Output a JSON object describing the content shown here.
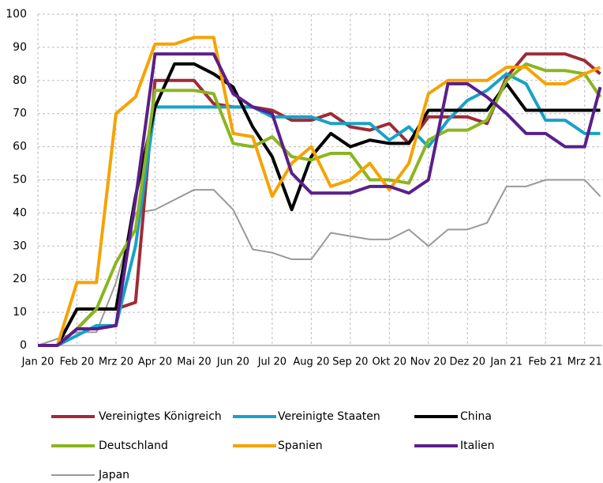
{
  "chart_data": {
    "type": "line",
    "x": [
      0,
      0.5,
      1,
      1.5,
      2,
      2.5,
      3,
      3.5,
      4,
      4.5,
      5,
      5.5,
      6,
      6.5,
      7,
      7.5,
      8,
      8.5,
      9,
      9.5,
      10,
      10.5,
      11,
      11.5,
      12,
      12.5,
      13,
      13.5,
      14,
      14.4
    ],
    "xlim": [
      0,
      14.45
    ],
    "xticks": [
      {
        "value": 0,
        "label": "Jan 20"
      },
      {
        "value": 1,
        "label": "Feb 20"
      },
      {
        "value": 2,
        "label": "Mrz 20"
      },
      {
        "value": 3,
        "label": "Apr 20"
      },
      {
        "value": 4,
        "label": "Mai 20"
      },
      {
        "value": 5,
        "label": "Jun 20"
      },
      {
        "value": 6,
        "label": "Jul 20"
      },
      {
        "value": 7,
        "label": "Aug 20"
      },
      {
        "value": 8,
        "label": "Sep 20"
      },
      {
        "value": 9,
        "label": "Okt 20"
      },
      {
        "value": 10,
        "label": "Nov 20"
      },
      {
        "value": 11,
        "label": "Dez 20"
      },
      {
        "value": 12,
        "label": "Jan 21"
      },
      {
        "value": 13,
        "label": "Feb 21"
      },
      {
        "value": 14,
        "label": "Mrz 21"
      }
    ],
    "ylim": [
      0,
      100
    ],
    "yticks": [
      0,
      10,
      20,
      30,
      40,
      50,
      60,
      70,
      80,
      90,
      100
    ],
    "grid": true,
    "series": [
      {
        "name": "Japan",
        "color": "#999999",
        "values": [
          0,
          2,
          4,
          4,
          19,
          40,
          41,
          44,
          47,
          47,
          41,
          29,
          28,
          26,
          26,
          34,
          33,
          32,
          32,
          35,
          30,
          35,
          35,
          37,
          48,
          48,
          50,
          50,
          50,
          45
        ]
      },
      {
        "name": "Vereinigtes Königreich",
        "color": "#9e2b36",
        "values": [
          0,
          0,
          5,
          11,
          11,
          13,
          80,
          80,
          80,
          73,
          72,
          72,
          71,
          68,
          68,
          70,
          66,
          65,
          67,
          61,
          69,
          69,
          69,
          67,
          81,
          88,
          88,
          88,
          86,
          82
        ]
      },
      {
        "name": "Vereinigte Staaten",
        "color": "#17a2c8",
        "values": [
          0,
          0,
          3,
          6,
          6,
          30,
          72,
          72,
          72,
          72,
          72,
          72,
          69,
          69,
          69,
          67,
          67,
          67,
          62,
          66,
          60,
          68,
          74,
          77,
          82,
          79,
          68,
          68,
          64,
          64
        ]
      },
      {
        "name": "China",
        "color": "#000000",
        "values": [
          0,
          0,
          11,
          11,
          11,
          45,
          72,
          85,
          85,
          82,
          78,
          66,
          57,
          41,
          57,
          64,
          60,
          62,
          61,
          61,
          71,
          71,
          71,
          71,
          79,
          71,
          71,
          71,
          71,
          71
        ]
      },
      {
        "name": "Deutschland",
        "color": "#8bb520",
        "values": [
          0,
          0,
          5,
          11,
          25,
          35,
          77,
          77,
          77,
          76,
          61,
          60,
          63,
          57,
          56,
          58,
          58,
          50,
          50,
          49,
          62,
          65,
          65,
          68,
          80,
          85,
          83,
          83,
          82,
          75
        ]
      },
      {
        "name": "Spanien",
        "color": "#f5a300",
        "values": [
          0,
          0,
          19,
          19,
          70,
          75,
          91,
          91,
          93,
          93,
          64,
          63,
          45,
          55,
          60,
          48,
          50,
          55,
          47,
          55,
          76,
          80,
          80,
          80,
          84,
          84,
          79,
          79,
          82,
          84
        ]
      },
      {
        "name": "Italien",
        "color": "#5a1f8a",
        "values": [
          0,
          0,
          5,
          5,
          6,
          44,
          88,
          88,
          88,
          88,
          76,
          72,
          70,
          52,
          46,
          46,
          46,
          48,
          48,
          46,
          50,
          79,
          79,
          75,
          70,
          64,
          64,
          60,
          60,
          78
        ]
      }
    ]
  }
}
